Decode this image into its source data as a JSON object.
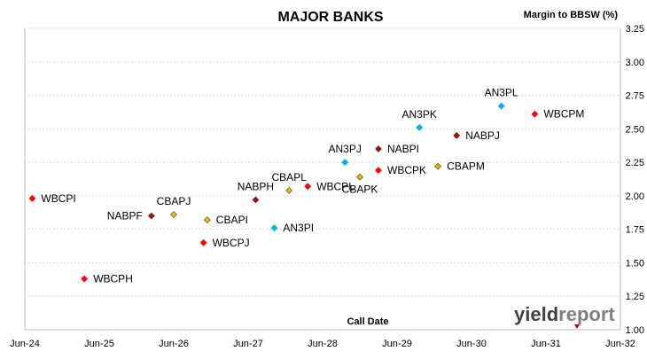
{
  "chart_data": {
    "type": "scatter",
    "title": "MAJOR BANKS",
    "xlabel": "Call Date",
    "ylabel": "Margin to BBSW (%)",
    "ylim": [
      1.0,
      3.25
    ],
    "ytick_step": 0.25,
    "yaxis_position": "right",
    "grid": "horizontal",
    "x_ticks": [
      "Jun-24",
      "Jun-25",
      "Jun-26",
      "Jun-27",
      "Jun-28",
      "Jun-29",
      "Jun-30",
      "Jun-31",
      "Jun-32"
    ],
    "xlim": [
      "Jun-24",
      "Jun-32"
    ],
    "issuer_colors": {
      "WBC": "#ff0000",
      "NAB": "#c00000",
      "CBA": "#f0b400",
      "ANZ": "#00b0f0"
    },
    "points": [
      {
        "label": "WBCPI",
        "x": 2024.6,
        "y": 1.98,
        "issuer": "WBC",
        "label_side": "right"
      },
      {
        "label": "WBCPH",
        "x": 2025.3,
        "y": 1.38,
        "issuer": "WBC",
        "label_side": "right"
      },
      {
        "label": "NABPF",
        "x": 2026.2,
        "y": 1.85,
        "issuer": "NAB",
        "label_side": "left"
      },
      {
        "label": "CBAPJ",
        "x": 2026.5,
        "y": 1.86,
        "issuer": "CBA",
        "label_side": "above"
      },
      {
        "label": "WBCPJ",
        "x": 2026.9,
        "y": 1.65,
        "issuer": "WBC",
        "label_side": "right"
      },
      {
        "label": "CBAPI",
        "x": 2026.95,
        "y": 1.82,
        "issuer": "CBA",
        "label_side": "right"
      },
      {
        "label": "NABPH",
        "x": 2027.6,
        "y": 1.97,
        "issuer": "NAB",
        "label_side": "above"
      },
      {
        "label": "AN3PI",
        "x": 2027.85,
        "y": 1.76,
        "issuer": "ANZ",
        "label_side": "right"
      },
      {
        "label": "CBAPL",
        "x": 2028.05,
        "y": 2.04,
        "issuer": "CBA",
        "label_side": "above"
      },
      {
        "label": "WBCPL",
        "x": 2028.3,
        "y": 2.07,
        "issuer": "WBC",
        "label_side": "right"
      },
      {
        "label": "AN3PJ",
        "x": 2028.8,
        "y": 2.25,
        "issuer": "ANZ",
        "label_side": "above"
      },
      {
        "label": "CBAPK",
        "x": 2029.0,
        "y": 2.14,
        "issuer": "CBA",
        "label_side": "below"
      },
      {
        "label": "NABPI",
        "x": 2029.25,
        "y": 2.35,
        "issuer": "NAB",
        "label_side": "right"
      },
      {
        "label": "WBCPK",
        "x": 2029.25,
        "y": 2.19,
        "issuer": "WBC",
        "label_side": "right"
      },
      {
        "label": "AN3PK",
        "x": 2029.8,
        "y": 2.51,
        "issuer": "ANZ",
        "label_side": "above"
      },
      {
        "label": "CBAPM",
        "x": 2030.05,
        "y": 2.22,
        "issuer": "CBA",
        "label_side": "right"
      },
      {
        "label": "NABPJ",
        "x": 2030.3,
        "y": 2.45,
        "issuer": "NAB",
        "label_side": "right"
      },
      {
        "label": "AN3PL",
        "x": 2030.9,
        "y": 2.67,
        "issuer": "ANZ",
        "label_side": "above"
      },
      {
        "label": "WBCPM",
        "x": 2031.35,
        "y": 2.61,
        "issuer": "WBC",
        "label_side": "right"
      }
    ],
    "x_numeric_note_free": true
  },
  "branding": {
    "logo_part1": "yield",
    "logo_part2": "report",
    "logo_color_dark": "#404040",
    "logo_color_light": "#7f7f7f",
    "logo_marker_color": "#c00000"
  }
}
